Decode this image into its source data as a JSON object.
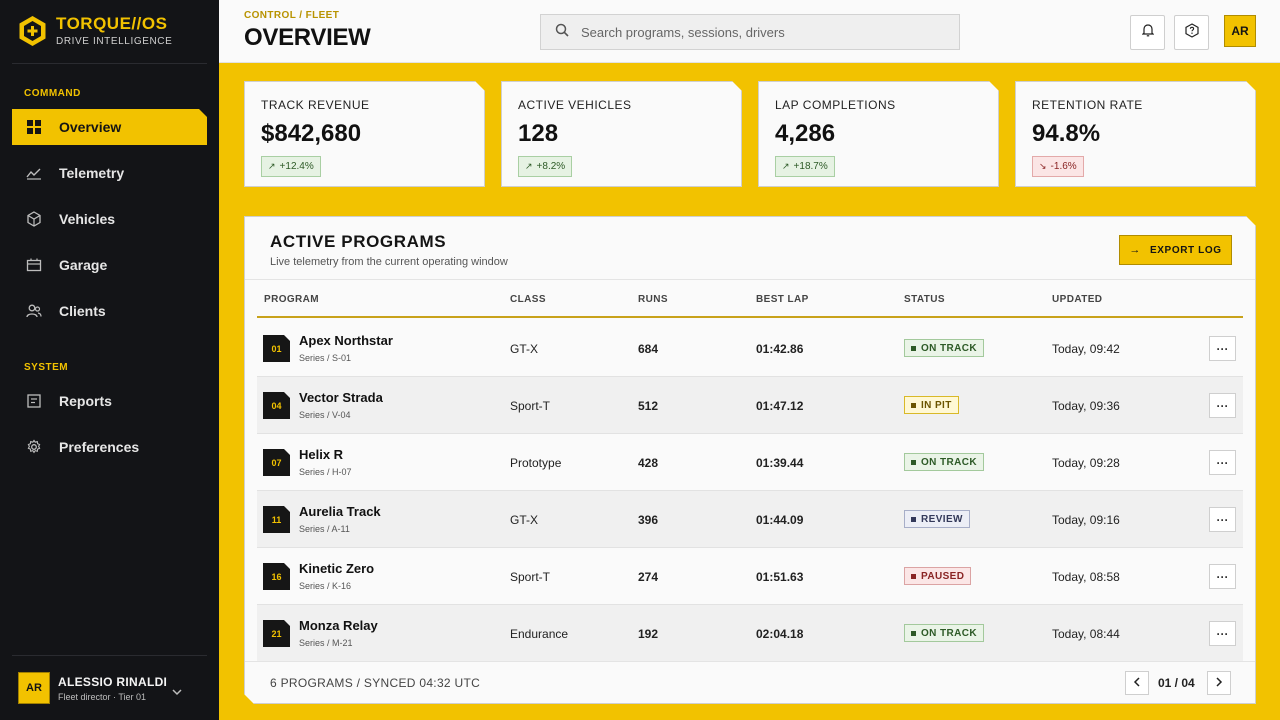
{
  "brand": {
    "name": "TORQUE//OS",
    "tagline": "DRIVE INTELLIGENCE"
  },
  "sidebar": {
    "sections": [
      {
        "title": "COMMAND",
        "items": [
          {
            "label": "Overview",
            "icon": "grid-icon",
            "active": true
          },
          {
            "label": "Telemetry",
            "icon": "line-chart-icon"
          },
          {
            "label": "Vehicles",
            "icon": "cube-icon"
          },
          {
            "label": "Garage",
            "icon": "garage-icon"
          },
          {
            "label": "Clients",
            "icon": "users-icon"
          }
        ]
      },
      {
        "title": "SYSTEM",
        "items": [
          {
            "label": "Reports",
            "icon": "report-icon"
          },
          {
            "label": "Preferences",
            "icon": "gear-icon"
          }
        ]
      }
    ],
    "user": {
      "initials": "AR",
      "name": "ALESSIO RINALDI",
      "role": "Fleet director · Tier 01"
    }
  },
  "header": {
    "breadcrumb": "CONTROL / FLEET",
    "title": "OVERVIEW",
    "search_placeholder": "Search programs, sessions, drivers",
    "avatar_initials": "AR"
  },
  "kpis": [
    {
      "label": "TRACK REVENUE",
      "value": "$842,680",
      "delta": "+12.4%",
      "trend": "up"
    },
    {
      "label": "ACTIVE VEHICLES",
      "value": "128",
      "delta": "+8.2%",
      "trend": "up"
    },
    {
      "label": "LAP COMPLETIONS",
      "value": "4,286",
      "delta": "+18.7%",
      "trend": "up"
    },
    {
      "label": "RETENTION RATE",
      "value": "94.8%",
      "delta": "-1.6%",
      "trend": "down"
    }
  ],
  "programs": {
    "title": "ACTIVE PROGRAMS",
    "subtitle": "Live telemetry from the current operating window",
    "export_label": "EXPORT LOG",
    "columns": [
      "PROGRAM",
      "CLASS",
      "RUNS",
      "BEST LAP",
      "STATUS",
      "UPDATED"
    ],
    "rows": [
      {
        "num": "01",
        "name": "Apex Northstar",
        "series": "Series / S-01",
        "class": "GT-X",
        "runs": "684",
        "best_lap": "01:42.86",
        "status": "ON TRACK",
        "status_kind": "on",
        "updated": "Today, 09:42"
      },
      {
        "num": "04",
        "name": "Vector Strada",
        "series": "Series / V-04",
        "class": "Sport-T",
        "runs": "512",
        "best_lap": "01:47.12",
        "status": "IN PIT",
        "status_kind": "pit",
        "updated": "Today, 09:36"
      },
      {
        "num": "07",
        "name": "Helix R",
        "series": "Series / H-07",
        "class": "Prototype",
        "runs": "428",
        "best_lap": "01:39.44",
        "status": "ON TRACK",
        "status_kind": "on",
        "updated": "Today, 09:28"
      },
      {
        "num": "11",
        "name": "Aurelia Track",
        "series": "Series / A-11",
        "class": "GT-X",
        "runs": "396",
        "best_lap": "01:44.09",
        "status": "REVIEW",
        "status_kind": "rev",
        "updated": "Today, 09:16"
      },
      {
        "num": "16",
        "name": "Kinetic Zero",
        "series": "Series / K-16",
        "class": "Sport-T",
        "runs": "274",
        "best_lap": "01:51.63",
        "status": "PAUSED",
        "status_kind": "paused",
        "updated": "Today, 08:58"
      },
      {
        "num": "21",
        "name": "Monza Relay",
        "series": "Series / M-21",
        "class": "Endurance",
        "runs": "192",
        "best_lap": "02:04.18",
        "status": "ON TRACK",
        "status_kind": "on",
        "updated": "Today, 08:44"
      }
    ],
    "footer": "6 PROGRAMS / SYNCED 04:32 UTC",
    "page": "01 / 04"
  },
  "colors": {
    "accent": "#f2c200",
    "sidebar": "#131417"
  }
}
